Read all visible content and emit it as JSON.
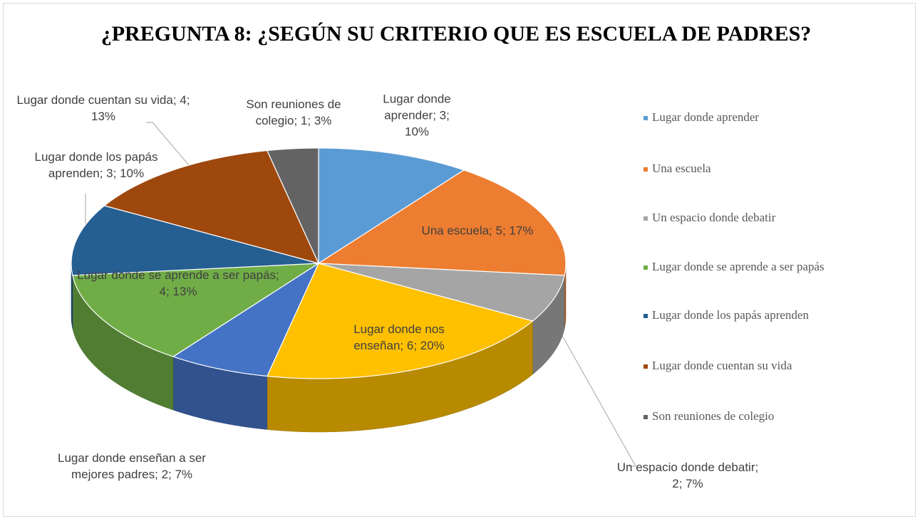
{
  "chart_data": {
    "type": "pie3d",
    "title": "¿PREGUNTA 8: ¿SEGÚN SU CRITERIO QUE ES ESCUELA DE PADRES?",
    "categories": [
      "Lugar donde aprender",
      "Una escuela",
      "Un espacio donde debatir",
      "Lugar donde nos enseñan",
      "Lugar donde enseñan a ser mejores padres",
      "Lugar donde se aprende a ser papás",
      "Lugar donde los papás aprenden",
      "Lugar donde cuentan su vida",
      "Son reuniones de colegio"
    ],
    "values": [
      3,
      5,
      2,
      6,
      2,
      4,
      3,
      4,
      1
    ],
    "value_labels": [
      "Lugar donde aprender; 3; 10%",
      "Una escuela; 5; 17%",
      "Un espacio donde debatir; 2; 7%",
      "Lugar donde nos enseñan; 6; 20%",
      "Lugar donde enseñan a ser mejores padres; 2; 7%",
      "Lugar donde se aprende a ser papás; 4; 13%",
      "Lugar donde los papás aprenden; 3; 10%",
      "Lugar donde cuentan su vida; 4; 13%",
      "Son reuniones de colegio; 1; 3%"
    ],
    "colors": [
      "#5b9bd5",
      "#ed7d31",
      "#a5a5a5",
      "#ffc000",
      "#4472c4",
      "#70ad47",
      "#255e91",
      "#9e480e",
      "#636363"
    ],
    "legend": [
      "Lugar donde aprender",
      "Una escuela",
      "Un espacio donde debatir",
      "Lugar donde se aprende a ser papás",
      "Lugar donde los papás aprenden",
      "Lugar donde cuentan su vida",
      "Son reuniones de colegio"
    ],
    "legend_colors": [
      "#5b9bd5",
      "#ed7d31",
      "#a5a5a5",
      "#70ad47",
      "#255e91",
      "#9e480e",
      "#636363"
    ]
  }
}
